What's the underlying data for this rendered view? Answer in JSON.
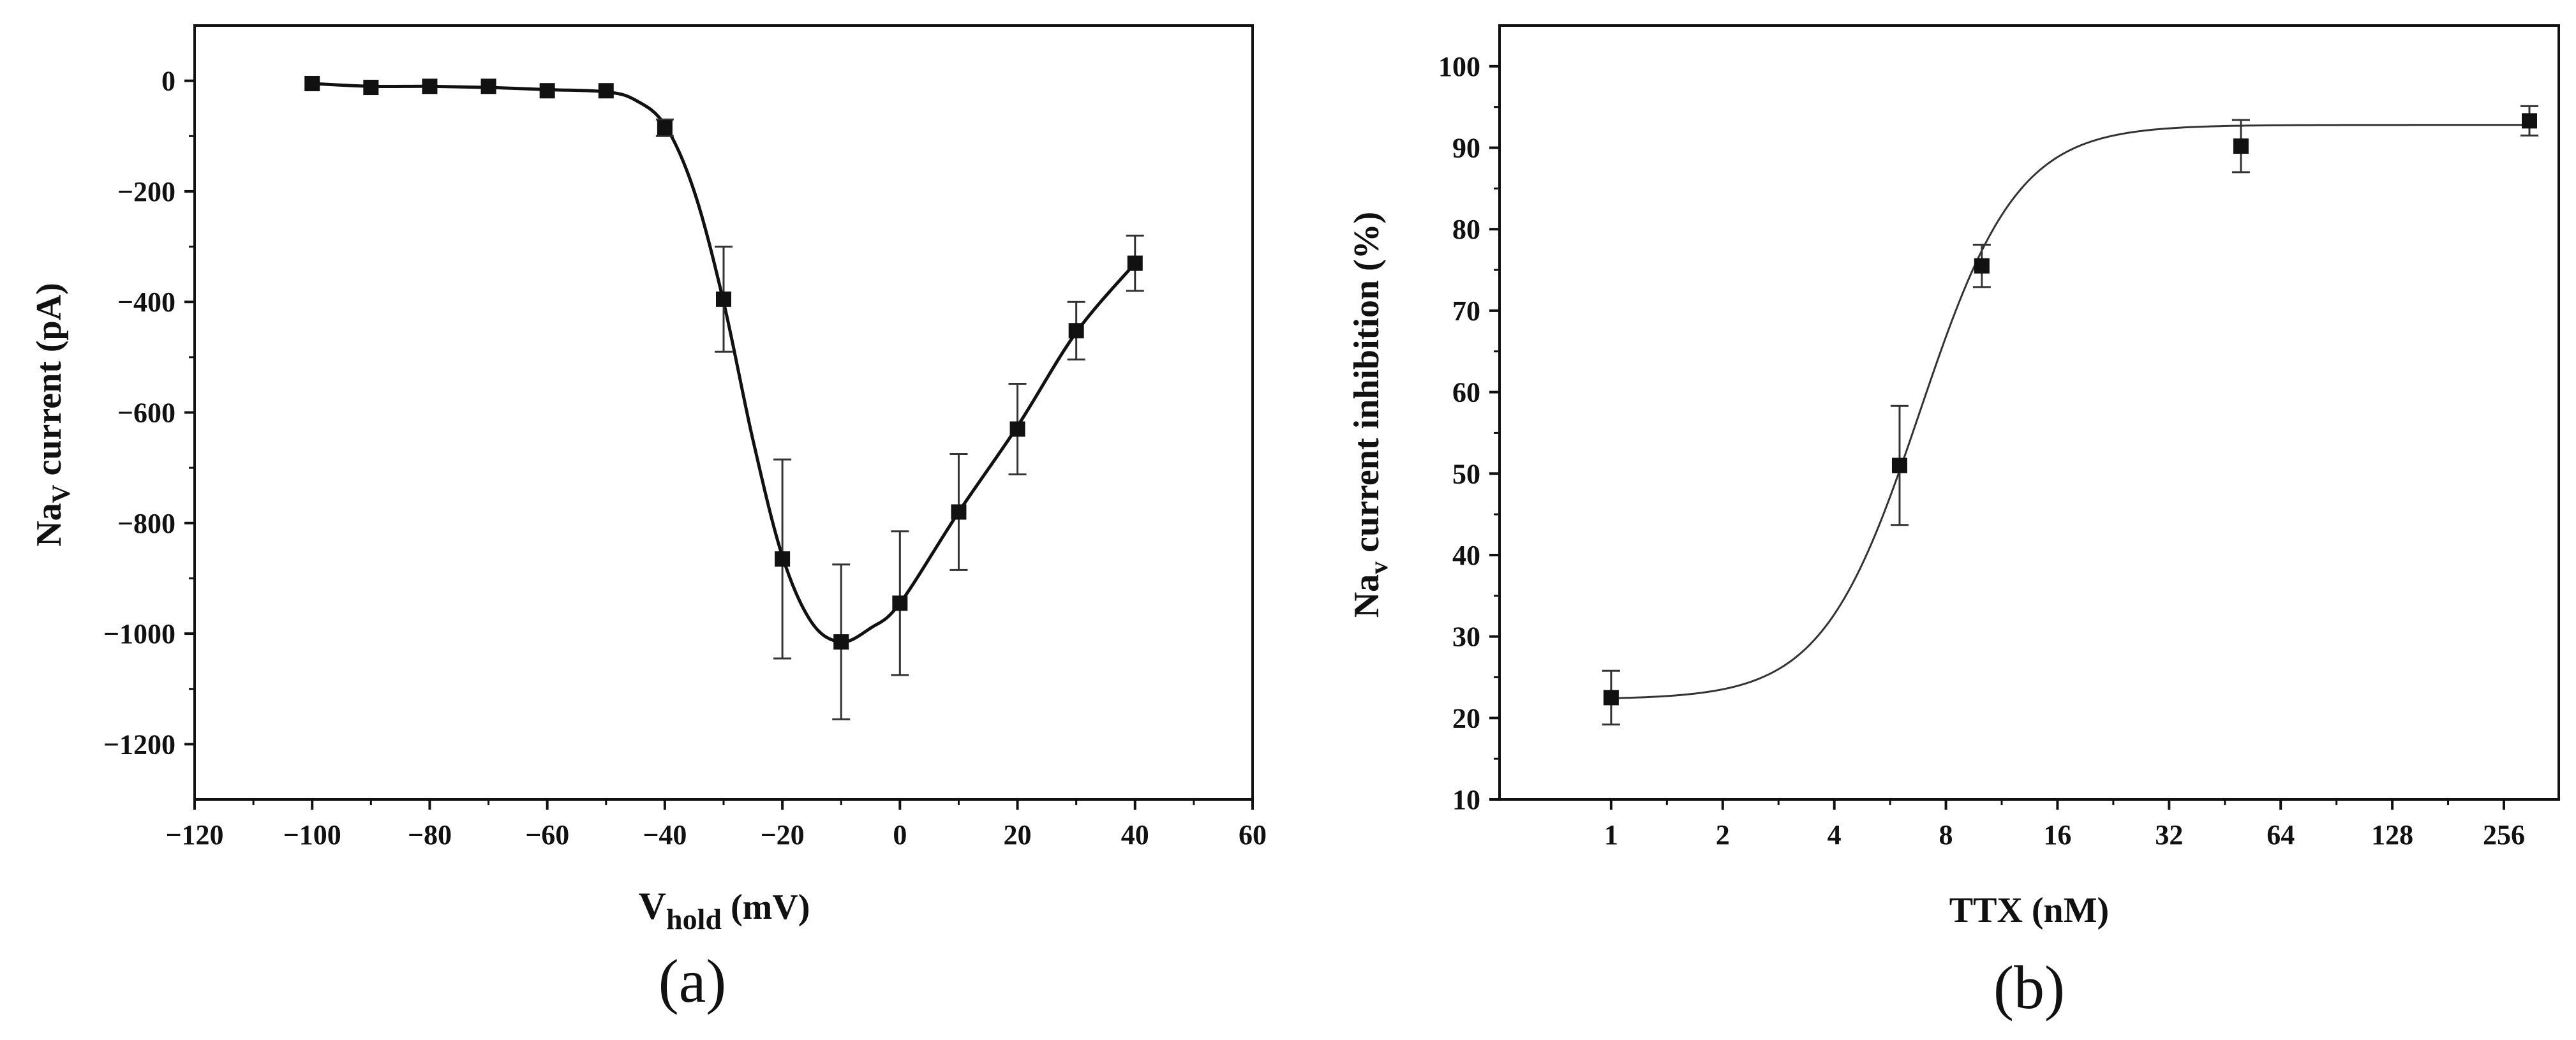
{
  "chart_data": [
    {
      "id": "a",
      "type": "line",
      "panel_label": "(a)",
      "xlabel": {
        "main": "V",
        "sub": "hold",
        "unit": " (mV)"
      },
      "ylabel": {
        "main": "Na",
        "sub": "V",
        "rest": " current (pA)"
      },
      "xlim": [
        -120,
        60
      ],
      "ylim": [
        -1300,
        100
      ],
      "xticks": [
        -120,
        -100,
        -80,
        -60,
        -40,
        -20,
        0,
        20,
        40,
        60
      ],
      "xtick_labels": [
        "−120",
        "−100",
        "−80",
        "−60",
        "−40",
        "−20",
        "0",
        "20",
        "40",
        "60"
      ],
      "yticks": [
        0,
        -200,
        -400,
        -600,
        -800,
        -1000,
        -1200
      ],
      "ytick_labels": [
        "0",
        "−200",
        "−400",
        "−600",
        "−800",
        "−1000",
        "−1200"
      ],
      "series": [
        {
          "name": "NaV current",
          "x": [
            -100,
            -90,
            -80,
            -70,
            -60,
            -50,
            -40,
            -30,
            -20,
            -10,
            0,
            10,
            20,
            30,
            40
          ],
          "y": [
            -5,
            -12,
            -10,
            -10,
            -18,
            -18,
            -85,
            -395,
            -865,
            -1015,
            -945,
            -780,
            -630,
            -452,
            -330
          ],
          "err": [
            0,
            0,
            0,
            0,
            0,
            0,
            15,
            95,
            180,
            140,
            130,
            105,
            82,
            52,
            50
          ]
        }
      ],
      "fit": {
        "x": [
          -100,
          -90,
          -80,
          -70,
          -60,
          -50,
          -45,
          -40,
          -35,
          -30,
          -25,
          -20,
          -15,
          -10,
          -5,
          0,
          10,
          20,
          30,
          40
        ],
        "y": [
          -5,
          -10,
          -10,
          -12,
          -16,
          -20,
          -35,
          -80,
          -200,
          -400,
          -650,
          -860,
          -980,
          -1015,
          -990,
          -945,
          -780,
          -625,
          -455,
          -330
        ]
      }
    },
    {
      "id": "b",
      "type": "scatter",
      "panel_label": "(b)",
      "xlabel": {
        "main": "TTX (nM)"
      },
      "ylabel": {
        "main": "Na",
        "sub": "v",
        "rest": " current inhibition (%)"
      },
      "xscale": "log2",
      "xlim": [
        0.5,
        360
      ],
      "ylim": [
        10,
        105
      ],
      "xticks": [
        1,
        2,
        4,
        8,
        16,
        32,
        64,
        128,
        256
      ],
      "xtick_labels": [
        "1",
        "2",
        "4",
        "8",
        "16",
        "32",
        "64",
        "128",
        "256"
      ],
      "yticks": [
        10,
        20,
        30,
        40,
        50,
        60,
        70,
        80,
        90,
        100
      ],
      "ytick_labels": [
        "10",
        "20",
        "30",
        "40",
        "50",
        "60",
        "70",
        "80",
        "90",
        "100"
      ],
      "series": [
        {
          "name": "NaV current inhibition",
          "x": [
            1,
            6,
            10,
            50,
            300
          ],
          "y": [
            22.5,
            51,
            75.5,
            90.2,
            93.3
          ],
          "err": [
            3.3,
            7.3,
            2.6,
            3.2,
            1.8
          ]
        }
      ],
      "fit": {
        "model": "logistic",
        "bottom": 22.3,
        "top": 92.8,
        "ec50": 6.8,
        "hill": 3.3
      }
    }
  ]
}
